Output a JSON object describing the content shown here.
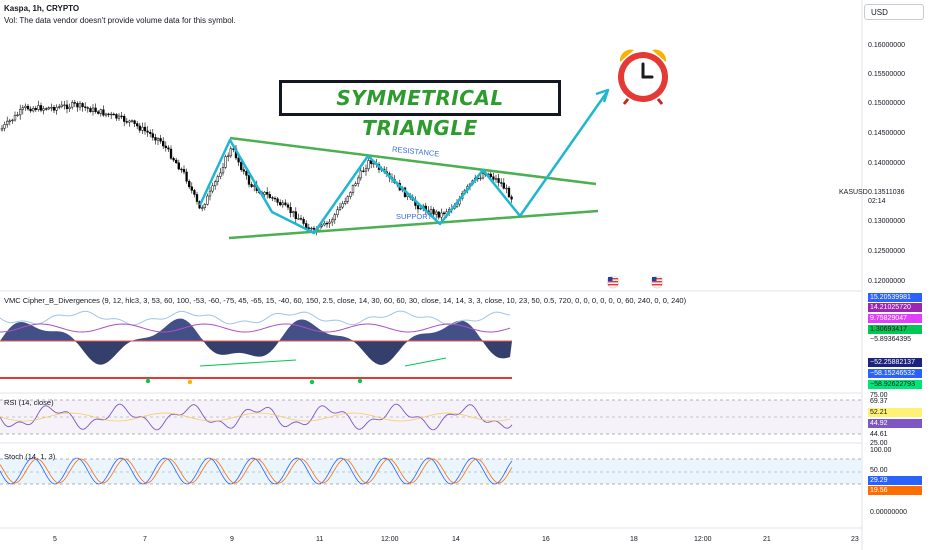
{
  "header": {
    "symbol": "Kaspa, 1h, CRYPTO",
    "volume_note": "Vol: The data vendor doesn't provide volume data for this symbol."
  },
  "currency_button": "USD",
  "annotation": {
    "title": "SYMMETRICAL TRIANGLE",
    "resistance": "RESISTANCE",
    "support": "SUPPORT"
  },
  "price_axis": {
    "labels": [
      "0.16000000",
      "0.15500000",
      "0.15000000",
      "0.14500000",
      "0.14000000",
      "0.13500000",
      "0.13000000",
      "0.12500000",
      "0.12000000"
    ],
    "symbol_tag": "KASUSD",
    "current_price": "0.13511036",
    "countdown": "02:14"
  },
  "time_axis": {
    "labels": [
      "5",
      "7",
      "9",
      "11",
      "12:00",
      "14",
      "16",
      "18",
      "12:00",
      "21",
      "23"
    ]
  },
  "indicators": {
    "vmc": {
      "title": "VMC Cipher_B_Divergences (9, 12, hlc3, 3, 53, 60, 100, -53, -60, -75, 45, -65, 15, -40, 60, 150, 2.5, close, 14, 30, 60, 60, 30, close, 14, 14, 3, 3, close, 10, 23, 50, 0.5, 720, 0, 0, 0, 0, 0, 0, 60, 240, 0, 0, 240)",
      "values": [
        "15.20539981",
        "14.21025720",
        "9.75829047",
        "1.30693417",
        "−5.89364395",
        "−52.25882137",
        "−58.15246532",
        "−58.92622793"
      ]
    },
    "rsi": {
      "title": "RSI (14, close)",
      "axis": [
        "75.00",
        "69.37",
        "52.21",
        "44.92",
        "44.61",
        "25.00"
      ]
    },
    "stoch": {
      "title": "Stoch (14, 1, 3)",
      "axis": [
        "100.00",
        "50.00",
        "29.29",
        "19.56",
        "0.00000000"
      ]
    }
  },
  "colors": {
    "triangle_green": "#4caf50",
    "zigzag_cyan": "#1fb6d2",
    "alarm_red": "#e53935",
    "rsi_line": "#7e57c2",
    "stoch_k": "#2962ff",
    "stoch_d": "#ff6d00"
  },
  "icons": [
    "alarm-clock-icon",
    "us-flag-icon",
    "us-flag-icon"
  ]
}
